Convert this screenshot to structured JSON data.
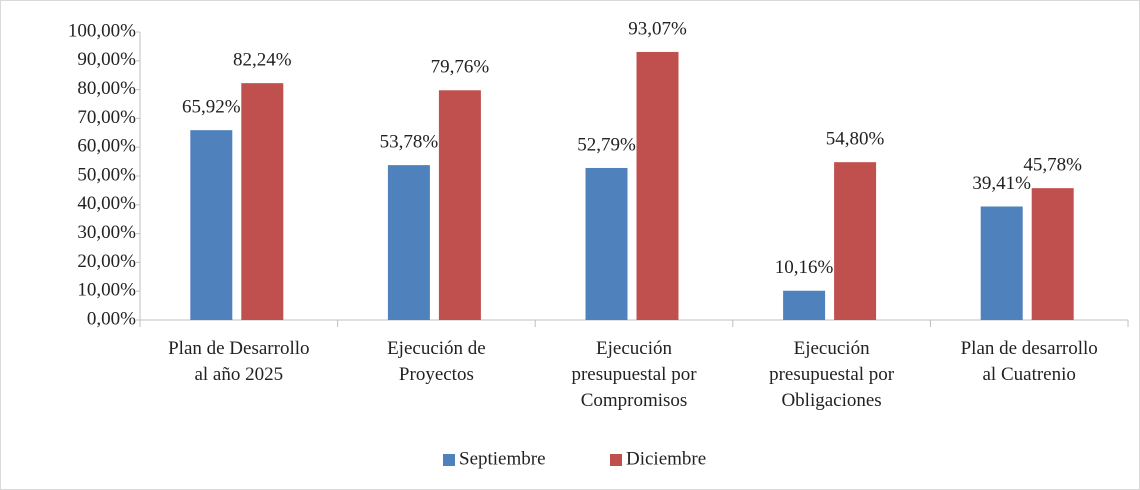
{
  "chart_data": {
    "type": "bar",
    "categories": [
      [
        "Plan de Desarrollo",
        "al año 2025"
      ],
      [
        "Ejecución de",
        "Proyectos"
      ],
      [
        "Ejecución",
        "presupuestal por",
        "Compromisos"
      ],
      [
        "Ejecución",
        "presupuestal por",
        "Obligaciones"
      ],
      [
        "Plan de desarrollo",
        "al Cuatrenio"
      ]
    ],
    "series": [
      {
        "name": "Septiembre",
        "color": "#4f81bd",
        "values": [
          65.92,
          53.78,
          52.79,
          10.16,
          39.41
        ],
        "value_labels": [
          "65,92%",
          "53,78%",
          "52,79%",
          "10,16%",
          "39,41%"
        ]
      },
      {
        "name": "Diciembre",
        "color": "#c0504d",
        "values": [
          82.24,
          79.76,
          93.07,
          54.8,
          45.78
        ],
        "value_labels": [
          "82,24%",
          "79,76%",
          "93,07%",
          "54,80%",
          "45,78%"
        ]
      }
    ],
    "ylim": [
      0,
      100
    ],
    "yticks": [
      {
        "value": 0,
        "label": "0,00%"
      },
      {
        "value": 10,
        "label": "10,00%"
      },
      {
        "value": 20,
        "label": "20,00%"
      },
      {
        "value": 30,
        "label": "30,00%"
      },
      {
        "value": 40,
        "label": "40,00%"
      },
      {
        "value": 50,
        "label": "50,00%"
      },
      {
        "value": 60,
        "label": "60,00%"
      },
      {
        "value": 70,
        "label": "70,00%"
      },
      {
        "value": 80,
        "label": "80,00%"
      },
      {
        "value": 90,
        "label": "90,00%"
      },
      {
        "value": 100,
        "label": "100,00%"
      }
    ],
    "grid": false,
    "legend": "bottom"
  }
}
